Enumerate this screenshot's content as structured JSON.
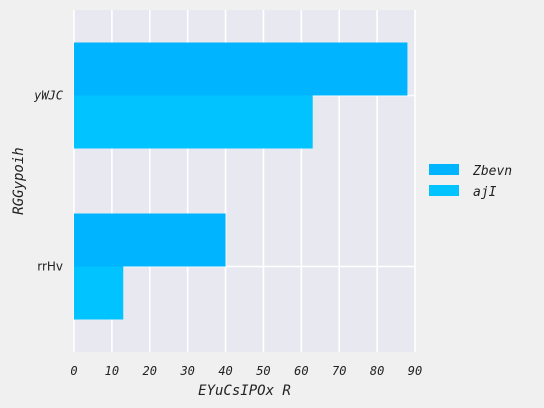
{
  "chart_data": {
    "type": "bar",
    "orientation": "horizontal",
    "categories": [
      "rrHv",
      "yWJC"
    ],
    "series": [
      {
        "name": "Zbevn",
        "color": "#00b4ff",
        "values": [
          40,
          88
        ]
      },
      {
        "name": "ajI",
        "color": "#00c3ff",
        "values": [
          13,
          63
        ]
      }
    ],
    "xlabel": "EYuCsIPOx R",
    "ylabel": "RGGypoih",
    "xticks": [
      0,
      10,
      20,
      30,
      40,
      50,
      60,
      70,
      80,
      90
    ],
    "xlim": [
      0,
      90
    ],
    "grid": true,
    "legend_position": "right"
  },
  "colors": {
    "background": "#f0f0f0",
    "plot_background": "#e8e8f0",
    "grid": "#ffffff"
  }
}
